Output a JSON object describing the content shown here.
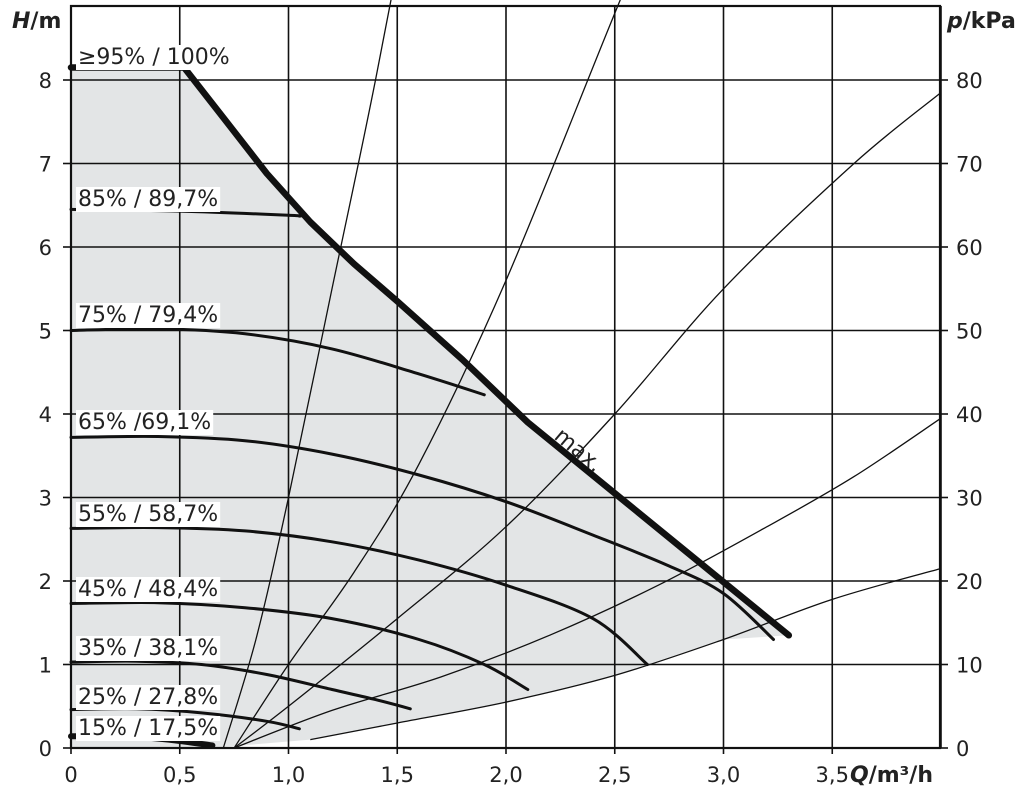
{
  "chart_data": {
    "type": "line",
    "title": "",
    "xlabel": {
      "symbol": "Q",
      "unit": "/m³/h"
    },
    "ylabel_left": {
      "symbol": "H",
      "unit": "/m"
    },
    "ylabel_right": {
      "symbol": "p",
      "unit": "/kPa"
    },
    "xlim": [
      0,
      4.0
    ],
    "ylim": [
      0,
      8.8
    ],
    "grid": true,
    "x_ticks": [
      "0",
      "0,5",
      "1,0",
      "1,5",
      "2,0",
      "2,5",
      "3,0",
      "3,5"
    ],
    "x_tick_values": [
      0,
      0.5,
      1.0,
      1.5,
      2.0,
      2.5,
      3.0,
      3.5
    ],
    "y_ticks_left": [
      "0",
      "1",
      "2",
      "3",
      "4",
      "5",
      "6",
      "7",
      "8"
    ],
    "y_tick_values_left": [
      0,
      1,
      2,
      3,
      4,
      5,
      6,
      7,
      8
    ],
    "y_ticks_right": [
      "0",
      "10",
      "20",
      "30",
      "40",
      "50",
      "60",
      "70",
      "80"
    ],
    "y_tick_values_right": [
      0,
      10,
      20,
      30,
      40,
      50,
      60,
      70,
      80
    ],
    "colors": {
      "area_fill": "#e3e5e6",
      "curve": "#111111",
      "grid": "#111111"
    },
    "max_label": "max.",
    "max_curve": [
      [
        0,
        8.15
      ],
      [
        0.52,
        8.15
      ],
      [
        0.7,
        7.55
      ],
      [
        0.9,
        6.88
      ],
      [
        1.1,
        6.3
      ],
      [
        1.3,
        5.8
      ],
      [
        1.5,
        5.35
      ],
      [
        1.8,
        4.65
      ],
      [
        2.1,
        3.9
      ],
      [
        2.5,
        3.05
      ],
      [
        2.9,
        2.2
      ],
      [
        3.3,
        1.35
      ]
    ],
    "speed_curves": [
      {
        "name": "≥95% / 100%",
        "points": [
          [
            0,
            8.15
          ],
          [
            0.52,
            8.15
          ]
        ]
      },
      {
        "name": "85% / 89,7%",
        "points": [
          [
            0,
            6.45
          ],
          [
            0.5,
            6.43
          ],
          [
            1.0,
            6.38
          ],
          [
            1.05,
            6.37
          ]
        ]
      },
      {
        "name": "75% / 79,4%",
        "points": [
          [
            0,
            5.0
          ],
          [
            0.4,
            5.02
          ],
          [
            0.8,
            4.96
          ],
          [
            1.2,
            4.78
          ],
          [
            1.6,
            4.48
          ],
          [
            1.9,
            4.23
          ]
        ]
      },
      {
        "name": "65% /69,1%",
        "points": [
          [
            0,
            3.72
          ],
          [
            0.4,
            3.73
          ],
          [
            0.8,
            3.68
          ],
          [
            1.2,
            3.52
          ],
          [
            1.6,
            3.27
          ],
          [
            2.0,
            2.95
          ],
          [
            2.4,
            2.55
          ],
          [
            2.75,
            2.18
          ],
          [
            3.0,
            1.85
          ],
          [
            3.23,
            1.3
          ]
        ]
      },
      {
        "name": "55% / 58,7%",
        "points": [
          [
            0,
            2.63
          ],
          [
            0.4,
            2.64
          ],
          [
            0.8,
            2.6
          ],
          [
            1.2,
            2.47
          ],
          [
            1.6,
            2.25
          ],
          [
            2.0,
            1.95
          ],
          [
            2.4,
            1.55
          ],
          [
            2.65,
            1.0
          ]
        ]
      },
      {
        "name": "45% / 48,4%",
        "points": [
          [
            0,
            1.73
          ],
          [
            0.4,
            1.74
          ],
          [
            0.8,
            1.68
          ],
          [
            1.2,
            1.55
          ],
          [
            1.6,
            1.3
          ],
          [
            1.9,
            1.0
          ],
          [
            2.1,
            0.7
          ]
        ]
      },
      {
        "name": "35% / 38,1%",
        "points": [
          [
            0,
            1.03
          ],
          [
            0.3,
            1.04
          ],
          [
            0.6,
            1.0
          ],
          [
            0.9,
            0.88
          ],
          [
            1.2,
            0.7
          ],
          [
            1.4,
            0.58
          ],
          [
            1.56,
            0.47
          ]
        ]
      },
      {
        "name": "25% / 27,8%",
        "points": [
          [
            0,
            0.46
          ],
          [
            0.3,
            0.47
          ],
          [
            0.6,
            0.42
          ],
          [
            0.9,
            0.32
          ],
          [
            1.05,
            0.23
          ]
        ]
      },
      {
        "name": "15% / 17,5%",
        "points": [
          [
            0,
            0.14
          ],
          [
            0.25,
            0.14
          ],
          [
            0.45,
            0.1
          ],
          [
            0.65,
            0.03
          ]
        ]
      }
    ],
    "system_curves": [
      {
        "points": [
          [
            0.7,
            0.0
          ],
          [
            0.85,
            1.3
          ],
          [
            1.0,
            3.0
          ],
          [
            1.2,
            5.5
          ],
          [
            1.4,
            8.0
          ],
          [
            1.62,
            11.0
          ]
        ]
      },
      {
        "points": [
          [
            0.75,
            0.0
          ],
          [
            1.0,
            1.0
          ],
          [
            1.3,
            2.1
          ],
          [
            1.6,
            3.4
          ],
          [
            2.0,
            5.6
          ],
          [
            2.5,
            8.8
          ],
          [
            2.85,
            11.0
          ]
        ]
      },
      {
        "points": [
          [
            0.75,
            0.0
          ],
          [
            1.0,
            0.5
          ],
          [
            1.5,
            1.55
          ],
          [
            2.0,
            2.65
          ],
          [
            2.5,
            4.0
          ],
          [
            3.0,
            5.5
          ],
          [
            3.6,
            7.0
          ],
          [
            4.0,
            7.85
          ]
        ]
      },
      {
        "points": [
          [
            0.75,
            0.0
          ],
          [
            1.2,
            0.45
          ],
          [
            1.7,
            0.85
          ],
          [
            2.2,
            1.35
          ],
          [
            2.7,
            1.95
          ],
          [
            3.2,
            2.65
          ],
          [
            3.6,
            3.25
          ],
          [
            4.0,
            3.95
          ]
        ]
      },
      {
        "points": [
          [
            1.1,
            0.1
          ],
          [
            1.5,
            0.3
          ],
          [
            2.0,
            0.55
          ],
          [
            2.5,
            0.87
          ],
          [
            3.0,
            1.3
          ],
          [
            3.5,
            1.78
          ],
          [
            4.0,
            2.15
          ]
        ]
      }
    ]
  }
}
